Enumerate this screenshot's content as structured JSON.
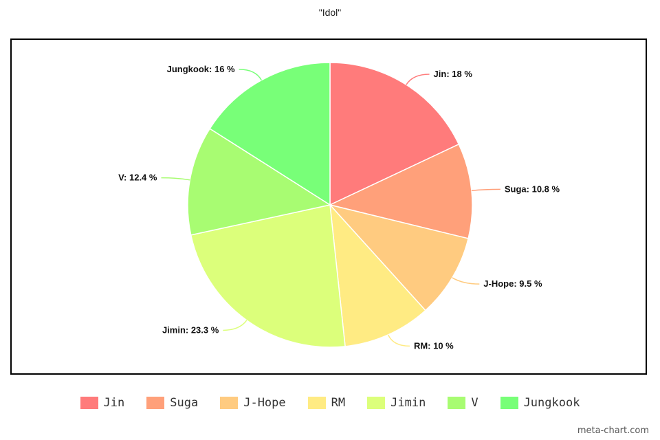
{
  "chart_data": {
    "type": "pie",
    "title": "\"Idol\"",
    "unit": "%",
    "slices": [
      {
        "label": "Jin",
        "value": 18,
        "display": "Jin: 18 %",
        "color": "#ff7b7b"
      },
      {
        "label": "Suga",
        "value": 10.8,
        "display": "Suga: 10.8 %",
        "color": "#ffa07a"
      },
      {
        "label": "J-Hope",
        "value": 9.5,
        "display": "J-Hope: 9.5 %",
        "color": "#ffcb80"
      },
      {
        "label": "RM",
        "value": 10,
        "display": "RM: 10 %",
        "color": "#ffeb83"
      },
      {
        "label": "Jimin",
        "value": 23.3,
        "display": "Jimin: 23.3 %",
        "color": "#dcff7b"
      },
      {
        "label": "V",
        "value": 12.4,
        "display": "V: 12.4 %",
        "color": "#a8fc72"
      },
      {
        "label": "Jungkook",
        "value": 16,
        "display": "Jungkook: 16 %",
        "color": "#78ff78"
      }
    ],
    "legend_position": "bottom",
    "start_angle": "top, clockwise"
  },
  "watermark": "meta-chart.com"
}
